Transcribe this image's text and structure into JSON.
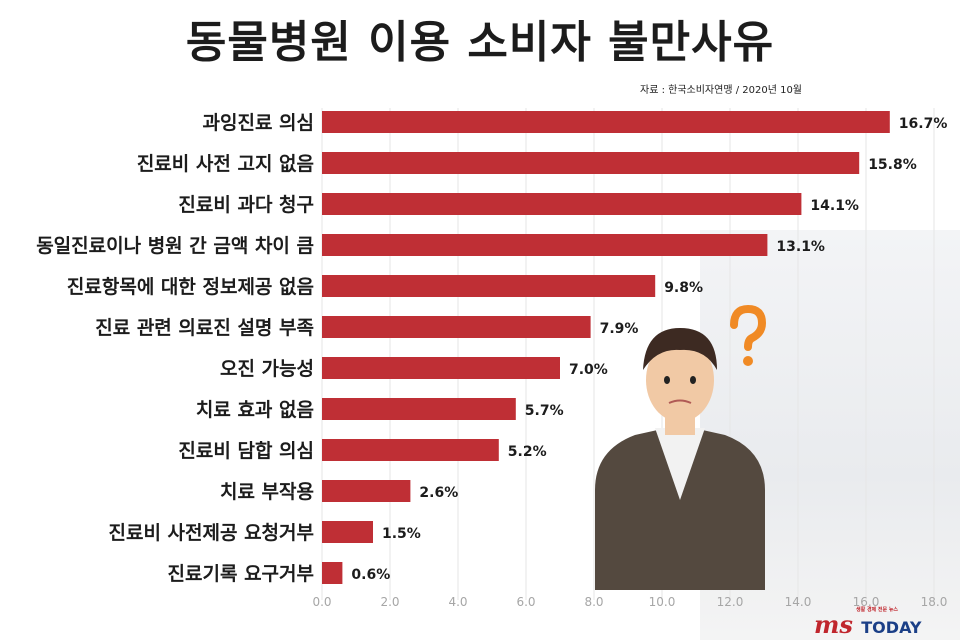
{
  "header": {
    "title": "동물병원 이용 소비자 불만사유",
    "source": "자료 : 한국소비자연맹 / 2020년 10월"
  },
  "logo": {
    "brand": "ms",
    "today": "TODAY",
    "tagline": "생활 경제 전문 뉴스"
  },
  "colors": {
    "bar": "#bf2f35",
    "tick": "#a6a6a6",
    "grid": "#e6e6e6"
  },
  "chart_data": {
    "type": "bar",
    "orientation": "horizontal",
    "categories": [
      "과잉진료 의심",
      "진료비 사전 고지 없음",
      "진료비 과다 청구",
      "동일진료이나 병원 간 금액 차이 큼",
      "진료항목에 대한 정보제공 없음",
      "진료 관련 의료진 설명 부족",
      "오진 가능성",
      "치료 효과 없음",
      "진료비 담합 의심",
      "치료 부작용",
      "진료비 사전제공 요청거부",
      "진료기록 요구거부"
    ],
    "values": [
      16.7,
      15.8,
      14.1,
      13.1,
      9.8,
      7.9,
      7.0,
      5.7,
      5.2,
      2.6,
      1.5,
      0.6
    ],
    "value_labels": [
      "16.7%",
      "15.8%",
      "14.1%",
      "13.1%",
      "9.8%",
      "7.9%",
      "7.0%",
      "5.7%",
      "5.2%",
      "2.6%",
      "1.5%",
      "0.6%"
    ],
    "xlim": [
      0,
      18
    ],
    "x_ticks": [
      "0.0",
      "2.0",
      "4.0",
      "6.0",
      "8.0",
      "10.0",
      "12.0",
      "14.0",
      "16.0",
      "18.0"
    ],
    "grid": true,
    "legend": "none"
  }
}
